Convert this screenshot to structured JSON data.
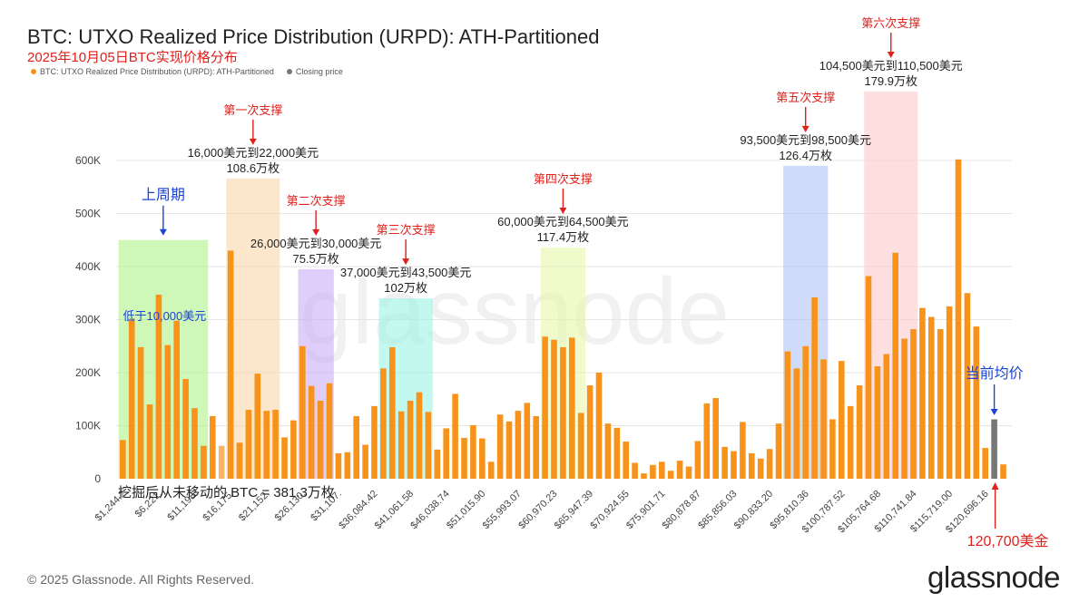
{
  "title": "BTC: UTXO Realized Price Distribution (URPD): ATH-Partitioned",
  "subtitle": "2025年10月05日BTC实现价格分布",
  "legend": [
    {
      "label": "BTC: UTXO Realized Price Distribution (URPD): ATH-Partitioned",
      "color": "#f7931a"
    },
    {
      "label": "Closing price",
      "color": "#777777"
    }
  ],
  "footer": "© 2025 Glassnode. All Rights Reserved.",
  "brand": "glassnode",
  "watermark": "glassnode",
  "colors": {
    "bar": "#f7931a",
    "bar_light": "#f8b567",
    "closing": "#777777",
    "grid": "#e6e6e6"
  },
  "chart_data": {
    "type": "bar",
    "title": "BTC: UTXO Realized Price Distribution (URPD): ATH-Partitioned",
    "ylim": [
      0,
      650000
    ],
    "y_ticks": [
      0,
      100000,
      200000,
      300000,
      400000,
      500000,
      600000
    ],
    "y_tick_labels": [
      "0",
      "100K",
      "200K",
      "300K",
      "400K",
      "500K",
      "600K"
    ],
    "x_tick_labels": [
      "$1,244.2",
      "$6,221.",
      "$11,198.",
      "$16,175.",
      "$21,152.",
      "$26,130.",
      "$31,107.",
      "$36,084.42",
      "$41,061.58",
      "$46,038.74",
      "$51,015.90",
      "$55,993.07",
      "$60,970.23",
      "$65,947.39",
      "$70,924.55",
      "$75,901.71",
      "$80,878.87",
      "$85,856.03",
      "$90,833.20",
      "$95,810.36",
      "$100,787.52",
      "$105,764.68",
      "$110,741.84",
      "$115,719.00",
      "$120,696.16"
    ],
    "values": [
      73000,
      300000,
      248000,
      140000,
      347000,
      252000,
      298000,
      188000,
      133000,
      62000,
      118000,
      62000,
      430000,
      68000,
      130000,
      198000,
      128000,
      130000,
      78000,
      110000,
      250000,
      175000,
      147000,
      180000,
      48000,
      50000,
      118000,
      64000,
      137000,
      208000,
      248000,
      127000,
      147000,
      163000,
      126000,
      55000,
      95000,
      160000,
      77000,
      101000,
      76000,
      32000,
      121000,
      108000,
      128000,
      143000,
      118000,
      268000,
      262000,
      248000,
      266000,
      124000,
      176000,
      200000,
      104000,
      96000,
      70000,
      30000,
      10000,
      26000,
      32000,
      15000,
      34000,
      23000,
      71000,
      142000,
      152000,
      60000,
      52000,
      107000,
      48000,
      38000,
      56000,
      104000,
      240000,
      208000,
      250000,
      342000,
      225000,
      112000,
      222000,
      137000,
      176000,
      382000,
      212000,
      235000,
      426000,
      264000,
      282000,
      322000,
      305000,
      282000,
      325000,
      602000,
      350000,
      287000,
      58000,
      112000,
      27000
    ],
    "closing_price": "120,700",
    "closing_index": 97,
    "light_indices": [
      11
    ],
    "support_zones": [
      {
        "title": "上周期",
        "range": "",
        "supply": "",
        "note": "低于10,000美元",
        "color": "#a8f07c",
        "x0": 0,
        "x1": 9,
        "top": 450000
      },
      {
        "title": "第一次支撑",
        "range": "16,000美元到22,000美元",
        "supply": "108.6万枚",
        "note": "",
        "color": "#fbd3a3",
        "x0": 12,
        "x1": 17,
        "top": 566000
      },
      {
        "title": "第二次支撑",
        "range": "26,000美元到30,000美元",
        "supply": "75.5万枚",
        "note": "",
        "color": "#c7a6f5",
        "x0": 20,
        "x1": 23,
        "top": 395000
      },
      {
        "title": "第三次支撑",
        "range": "37,000美元到43,500美元",
        "supply": "102万枚",
        "note": "",
        "color": "#8ff2de",
        "x0": 29,
        "x1": 34,
        "top": 340000
      },
      {
        "title": "第四次支撑",
        "range": "60,000美元到64,500美元",
        "supply": "117.4万枚",
        "note": "",
        "color": "#e3f5a0",
        "x0": 47,
        "x1": 51,
        "top": 436000
      },
      {
        "title": "第五次支撑",
        "range": "93,500美元到98,500美元",
        "supply": "126.4万枚",
        "note": "",
        "color": "#a9bdf5",
        "x0": 74,
        "x1": 78,
        "top": 590000
      },
      {
        "title": "第六次支撑",
        "range": "104,500美元到110,500美元",
        "supply": "179.9万枚",
        "note": "",
        "color": "#fcc4c4",
        "x0": 83,
        "x1": 88,
        "top": 730000
      }
    ],
    "annotations": {
      "unmoved": "挖掘后从未移动的 BTC = 381.3万枚",
      "current_avg": "当前均价",
      "closing_label": "120,700美金"
    }
  }
}
